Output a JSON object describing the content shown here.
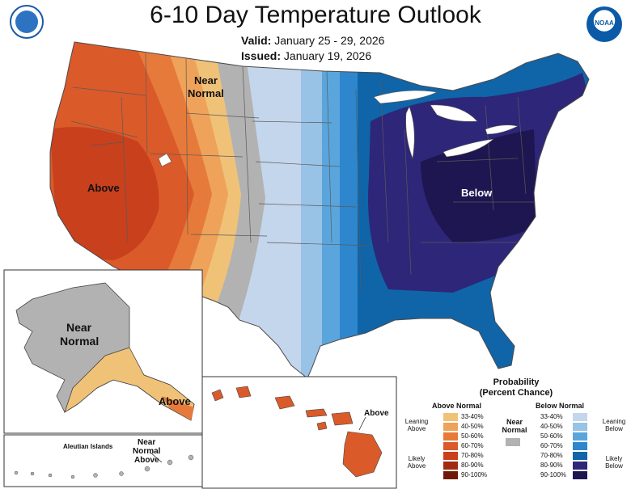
{
  "header": {
    "title": "6-10 Day Temperature Outlook",
    "valid_label": "Valid:",
    "valid_dates": "January 25 - 29, 2026",
    "issued_label": "Issued:",
    "issued_date": "January 19, 2026",
    "noaa_logo_text": "NOAA"
  },
  "map_labels": {
    "near_normal_north": [
      "Near",
      "Normal"
    ],
    "above_west": "Above",
    "below_east": "Below",
    "alaska_near_normal": [
      "Near",
      "Normal"
    ],
    "alaska_above": "Above",
    "aleutian_islands": "Aleutian Islands",
    "aleutian_near_normal_above": [
      "Near",
      "Normal",
      "Above"
    ],
    "hawaii_above": "Above"
  },
  "legend": {
    "title": "Probability",
    "subtitle": "(Percent Chance)",
    "above_header": "Above Normal",
    "below_header": "Below Normal",
    "near_normal_label": [
      "Near",
      "Normal"
    ],
    "near_normal_color": "#b2b2b2",
    "above": [
      {
        "range": "33-40%",
        "color": "#f0c278"
      },
      {
        "range": "40-50%",
        "color": "#eea25a"
      },
      {
        "range": "50-60%",
        "color": "#e67a3a"
      },
      {
        "range": "60-70%",
        "color": "#db5a2a"
      },
      {
        "range": "70-80%",
        "color": "#c8401c"
      },
      {
        "range": "80-90%",
        "color": "#a02c10"
      },
      {
        "range": "90-100%",
        "color": "#6e1a08"
      }
    ],
    "below": [
      {
        "range": "33-40%",
        "color": "#c4d6ec"
      },
      {
        "range": "40-50%",
        "color": "#98c2e6"
      },
      {
        "range": "50-60%",
        "color": "#5aa6dc"
      },
      {
        "range": "60-70%",
        "color": "#2e86cc"
      },
      {
        "range": "70-80%",
        "color": "#1064a8"
      },
      {
        "range": "80-90%",
        "color": "#2e2678"
      },
      {
        "range": "90-100%",
        "color": "#1e1650"
      }
    ],
    "leaning_above": [
      "Leaning",
      "Above"
    ],
    "likely_above": [
      "Likely",
      "Above"
    ],
    "leaning_below": [
      "Leaning",
      "Below"
    ],
    "likely_below": [
      "Likely",
      "Below"
    ]
  }
}
